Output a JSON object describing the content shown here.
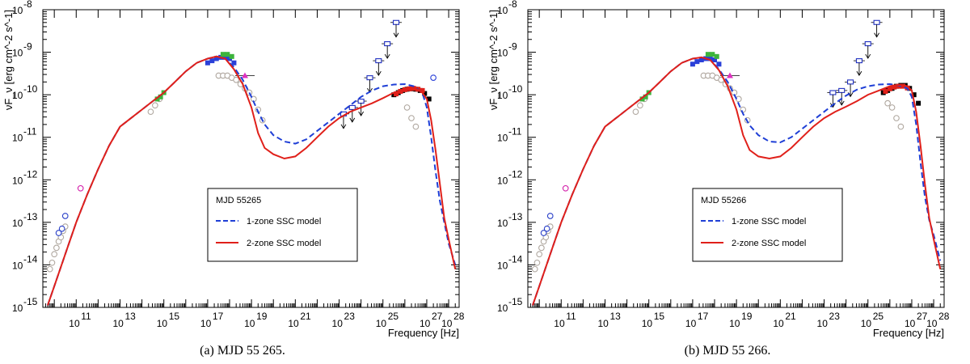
{
  "chart_data": [
    {
      "type": "line",
      "caption": "(a)  MJD 55 265.",
      "xlabel": "Frequency [Hz]",
      "ylabel": "νF_ν [erg cm^-2 s^-1]",
      "xscale": "log",
      "yscale": "log",
      "xlim": [
        3000000000.0,
        3e+28
      ],
      "ylim": [
        1e-15,
        1e-08
      ],
      "xticks": [
        11,
        13,
        15,
        17,
        19,
        21,
        23,
        25,
        27,
        28
      ],
      "yticks": [
        -15,
        -14,
        -13,
        -12,
        -11,
        -10,
        -9,
        -8
      ],
      "legend": {
        "title": "MJD 55265",
        "position": "center-right",
        "entries": [
          {
            "label": "1-zone SSC model",
            "color": "#1f3fd6",
            "style": "dashed"
          },
          {
            "label": "2-zone SSC model",
            "color": "#e0201a",
            "style": "solid"
          }
        ]
      },
      "series": [
        {
          "name": "1-zone SSC model",
          "color": "#1f3fd6",
          "style": "dashed",
          "x": [
            9.7,
            10.0,
            10.3,
            10.6,
            11.0,
            11.5,
            12.0,
            12.5,
            13.0,
            13.5,
            14.0,
            14.5,
            15.0,
            15.5,
            16.0,
            16.5,
            17.0,
            17.4,
            17.8,
            18.2,
            18.6,
            19.0,
            19.3,
            19.6,
            20.0,
            20.5,
            21.0,
            21.5,
            22.0,
            22.5,
            23.0,
            23.5,
            24.0,
            24.5,
            25.0,
            25.5,
            26.0,
            26.4,
            26.8,
            27.0,
            27.2,
            27.4,
            27.6,
            27.8,
            28.0,
            28.3
          ],
          "y": [
            -14.95,
            -14.5,
            -14.05,
            -13.6,
            -13.0,
            -12.35,
            -11.75,
            -11.2,
            -10.75,
            -10.55,
            -10.35,
            -10.15,
            -9.95,
            -9.7,
            -9.45,
            -9.25,
            -9.15,
            -9.1,
            -9.15,
            -9.35,
            -9.65,
            -10.05,
            -10.4,
            -10.7,
            -10.95,
            -11.1,
            -11.15,
            -11.05,
            -10.85,
            -10.65,
            -10.45,
            -10.25,
            -10.05,
            -9.9,
            -9.8,
            -9.76,
            -9.75,
            -9.8,
            -9.95,
            -10.3,
            -11.0,
            -11.8,
            -12.5,
            -13.0,
            -13.5,
            -14.0
          ]
        },
        {
          "name": "2-zone SSC model",
          "color": "#e0201a",
          "style": "solid",
          "x": [
            9.7,
            10.0,
            10.3,
            10.6,
            11.0,
            11.5,
            12.0,
            12.5,
            13.0,
            13.5,
            14.0,
            14.5,
            15.0,
            15.5,
            16.0,
            16.5,
            17.0,
            17.4,
            17.8,
            18.2,
            18.6,
            19.0,
            19.3,
            19.6,
            20.0,
            20.5,
            21.0,
            21.5,
            22.0,
            22.5,
            23.0,
            23.5,
            24.0,
            24.5,
            25.0,
            25.5,
            26.0,
            26.3,
            26.6,
            26.8,
            27.0,
            27.2,
            27.4,
            27.6,
            27.8,
            28.0,
            28.3
          ],
          "y": [
            -14.95,
            -14.5,
            -14.05,
            -13.6,
            -13.0,
            -12.35,
            -11.75,
            -11.2,
            -10.75,
            -10.55,
            -10.35,
            -10.15,
            -9.95,
            -9.7,
            -9.45,
            -9.25,
            -9.15,
            -9.1,
            -9.15,
            -9.4,
            -9.75,
            -10.3,
            -10.9,
            -11.25,
            -11.4,
            -11.5,
            -11.45,
            -11.25,
            -11.0,
            -10.75,
            -10.55,
            -10.4,
            -10.3,
            -10.2,
            -10.08,
            -9.95,
            -9.87,
            -9.85,
            -9.88,
            -9.95,
            -10.1,
            -10.6,
            -11.3,
            -12.1,
            -12.9,
            -13.4,
            -14.1
          ]
        }
      ],
      "observations": [
        {
          "name": "historical (grey)",
          "color": "#b0a8a0",
          "marker": "circle-open",
          "x": [
            9.8,
            9.9,
            10.0,
            10.1,
            10.2,
            10.3,
            10.4,
            10.5,
            14.4,
            14.6,
            14.8,
            17.5,
            17.7,
            17.9,
            18.1,
            18.3,
            18.5,
            18.7,
            18.9,
            19.1,
            19.3,
            19.5,
            26.1,
            26.3,
            26.5
          ],
          "y": [
            -14.1,
            -13.95,
            -13.75,
            -13.6,
            -13.45,
            -13.35,
            -13.2,
            -13.1,
            -10.4,
            -10.25,
            -10.1,
            -9.55,
            -9.55,
            -9.55,
            -9.6,
            -9.65,
            -9.75,
            -9.85,
            -9.95,
            -10.1,
            -10.35,
            -10.6,
            -10.3,
            -10.55,
            -10.75
          ]
        },
        {
          "name": "radio",
          "color": "#2a40c8",
          "marker": "circle-open",
          "x": [
            10.2,
            10.35,
            10.5
          ],
          "y": [
            -13.25,
            -13.15,
            -12.85
          ]
        },
        {
          "name": "sub-mm",
          "color": "#d21aa8",
          "marker": "circle-open",
          "x": [
            11.2
          ],
          "y": [
            -12.2
          ]
        },
        {
          "name": "optical/UV",
          "color": "#3cb43c",
          "marker": "square",
          "x": [
            14.7,
            14.85,
            15.0
          ],
          "y": [
            -10.1,
            -10.05,
            -9.95
          ]
        },
        {
          "name": "X-ray (blue)",
          "color": "#2a40d8",
          "marker": "square",
          "x": [
            17.0,
            17.2,
            17.4,
            17.6,
            17.8,
            18.0,
            18.2
          ],
          "y": [
            -9.25,
            -9.2,
            -9.15,
            -9.12,
            -9.12,
            -9.15,
            -9.25
          ]
        },
        {
          "name": "X-ray (green)",
          "color": "#3cb43c",
          "marker": "square",
          "x": [
            17.7,
            17.9,
            18.1
          ],
          "y": [
            -9.05,
            -9.05,
            -9.1
          ]
        },
        {
          "name": "hard X-ray",
          "color": "#e030c0",
          "marker": "triangle",
          "x": [
            18.7
          ],
          "y": [
            -9.55
          ]
        },
        {
          "name": "gamma (Fermi)",
          "color": "#1f2fc0",
          "marker": "square-open",
          "x": [
            23.2,
            23.6,
            24.0,
            24.4,
            24.8,
            25.2,
            25.6
          ],
          "y": [
            -10.45,
            -10.3,
            -10.15,
            -9.6,
            -9.2,
            -8.8,
            -8.3
          ]
        },
        {
          "name": "VHE (black)",
          "color": "#000000",
          "marker": "square",
          "x": [
            25.5,
            25.7,
            25.9,
            26.1,
            26.3,
            26.5,
            26.7,
            26.9,
            27.1
          ],
          "y": [
            -10.0,
            -9.95,
            -9.9,
            -9.87,
            -9.86,
            -9.87,
            -9.9,
            -9.97,
            -10.1
          ]
        },
        {
          "name": "VHE (red)",
          "color": "#e0201a",
          "marker": "square",
          "x": [
            25.6,
            25.8,
            26.0,
            26.2,
            26.4,
            26.6,
            26.8
          ],
          "y": [
            -9.98,
            -9.92,
            -9.88,
            -9.86,
            -9.85,
            -9.87,
            -9.9
          ]
        },
        {
          "name": "VHE (blue)",
          "color": "#2a40d8",
          "marker": "circle-open",
          "x": [
            27.3
          ],
          "y": [
            -9.6
          ]
        }
      ]
    },
    {
      "type": "line",
      "caption": "(b)  MJD 55 266.",
      "xlabel": "Frequency [Hz]",
      "ylabel": "νF_ν [erg cm^-2 s^-1]",
      "xscale": "log",
      "yscale": "log",
      "xlim": [
        3000000000.0,
        3e+28
      ],
      "ylim": [
        1e-15,
        1e-08
      ],
      "xticks": [
        11,
        13,
        15,
        17,
        19,
        21,
        23,
        25,
        27,
        28
      ],
      "yticks": [
        -15,
        -14,
        -13,
        -12,
        -11,
        -10,
        -9,
        -8
      ],
      "legend": {
        "title": "MJD 55266",
        "position": "center-right",
        "entries": [
          {
            "label": "1-zone SSC model",
            "color": "#1f3fd6",
            "style": "dashed"
          },
          {
            "label": "2-zone SSC model",
            "color": "#e0201a",
            "style": "solid"
          }
        ]
      },
      "series": [
        {
          "name": "1-zone SSC model",
          "color": "#1f3fd6",
          "style": "dashed",
          "x": [
            9.7,
            10.0,
            10.3,
            10.6,
            11.0,
            11.5,
            12.0,
            12.5,
            13.0,
            13.5,
            14.0,
            14.5,
            15.0,
            15.5,
            16.0,
            16.5,
            17.0,
            17.4,
            17.8,
            18.2,
            18.6,
            19.0,
            19.3,
            19.6,
            20.0,
            20.5,
            21.0,
            21.5,
            22.0,
            22.5,
            23.0,
            23.5,
            24.0,
            24.5,
            25.0,
            25.5,
            26.0,
            26.4,
            26.8,
            27.0,
            27.2,
            27.4,
            27.6,
            27.8,
            28.0,
            28.3
          ],
          "y": [
            -14.95,
            -14.5,
            -14.05,
            -13.6,
            -13.0,
            -12.35,
            -11.75,
            -11.2,
            -10.75,
            -10.55,
            -10.35,
            -10.15,
            -9.95,
            -9.7,
            -9.45,
            -9.25,
            -9.15,
            -9.12,
            -9.18,
            -9.4,
            -9.7,
            -10.1,
            -10.45,
            -10.72,
            -10.95,
            -11.1,
            -11.12,
            -11.0,
            -10.8,
            -10.6,
            -10.4,
            -10.2,
            -10.02,
            -9.88,
            -9.8,
            -9.76,
            -9.75,
            -9.78,
            -9.85,
            -10.05,
            -10.7,
            -11.6,
            -12.4,
            -12.95,
            -13.3,
            -13.9
          ]
        },
        {
          "name": "2-zone SSC model",
          "color": "#e0201a",
          "style": "solid",
          "x": [
            9.7,
            10.0,
            10.3,
            10.6,
            11.0,
            11.5,
            12.0,
            12.5,
            13.0,
            13.5,
            14.0,
            14.5,
            15.0,
            15.5,
            16.0,
            16.5,
            17.0,
            17.4,
            17.8,
            18.2,
            18.6,
            19.0,
            19.3,
            19.6,
            20.0,
            20.5,
            21.0,
            21.5,
            22.0,
            22.5,
            23.0,
            23.5,
            24.0,
            24.5,
            25.0,
            25.5,
            26.0,
            26.3,
            26.6,
            26.8,
            27.0,
            27.2,
            27.4,
            27.6,
            27.8,
            28.0,
            28.3
          ],
          "y": [
            -14.95,
            -14.5,
            -14.05,
            -13.6,
            -13.0,
            -12.35,
            -11.75,
            -11.2,
            -10.75,
            -10.55,
            -10.35,
            -10.15,
            -9.95,
            -9.7,
            -9.45,
            -9.25,
            -9.15,
            -9.12,
            -9.18,
            -9.42,
            -9.8,
            -10.35,
            -10.95,
            -11.3,
            -11.45,
            -11.5,
            -11.45,
            -11.25,
            -11.0,
            -10.75,
            -10.55,
            -10.4,
            -10.28,
            -10.15,
            -10.0,
            -9.9,
            -9.8,
            -9.77,
            -9.77,
            -9.8,
            -9.9,
            -10.4,
            -11.2,
            -12.1,
            -12.9,
            -13.4,
            -14.1
          ]
        }
      ],
      "observations": [
        {
          "name": "historical (grey)",
          "color": "#b0a8a0",
          "marker": "circle-open",
          "x": [
            9.8,
            9.9,
            10.0,
            10.1,
            10.2,
            10.3,
            10.4,
            10.5,
            14.4,
            14.6,
            14.8,
            17.5,
            17.7,
            17.9,
            18.1,
            18.3,
            18.5,
            18.7,
            18.9,
            19.1,
            19.3,
            19.5,
            25.9,
            26.1,
            26.3,
            26.5
          ],
          "y": [
            -14.1,
            -13.95,
            -13.75,
            -13.6,
            -13.45,
            -13.35,
            -13.2,
            -13.1,
            -10.4,
            -10.25,
            -10.1,
            -9.55,
            -9.55,
            -9.55,
            -9.6,
            -9.65,
            -9.75,
            -9.85,
            -9.95,
            -10.1,
            -10.35,
            -10.6,
            -10.2,
            -10.3,
            -10.55,
            -10.75
          ]
        },
        {
          "name": "radio",
          "color": "#2a40c8",
          "marker": "circle-open",
          "x": [
            10.2,
            10.35,
            10.5
          ],
          "y": [
            -13.25,
            -13.15,
            -12.85
          ]
        },
        {
          "name": "sub-mm",
          "color": "#d21aa8",
          "marker": "circle-open",
          "x": [
            11.2
          ],
          "y": [
            -12.2
          ]
        },
        {
          "name": "optical/UV",
          "color": "#3cb43c",
          "marker": "square",
          "x": [
            14.7,
            14.85,
            15.0
          ],
          "y": [
            -10.1,
            -10.05,
            -9.95
          ]
        },
        {
          "name": "X-ray (blue)",
          "color": "#2a40d8",
          "marker": "square",
          "x": [
            17.0,
            17.2,
            17.4,
            17.6,
            17.8,
            18.0,
            18.2
          ],
          "y": [
            -9.28,
            -9.22,
            -9.18,
            -9.15,
            -9.15,
            -9.18,
            -9.28
          ]
        },
        {
          "name": "X-ray (green)",
          "color": "#3cb43c",
          "marker": "square",
          "x": [
            17.7,
            17.9,
            18.1
          ],
          "y": [
            -9.05,
            -9.05,
            -9.1
          ]
        },
        {
          "name": "hard X-ray",
          "color": "#e030c0",
          "marker": "triangle",
          "x": [
            18.7
          ],
          "y": [
            -9.55
          ]
        },
        {
          "name": "gamma (Fermi)",
          "color": "#1f2fc0",
          "marker": "square-open",
          "x": [
            23.4,
            23.8,
            24.2,
            24.6,
            25.0,
            25.4
          ],
          "y": [
            -9.95,
            -9.9,
            -9.7,
            -9.2,
            -8.8,
            -8.3
          ]
        },
        {
          "name": "VHE (black)",
          "color": "#000000",
          "marker": "square",
          "x": [
            25.7,
            25.9,
            26.1,
            26.3,
            26.5,
            26.7,
            26.9,
            27.1,
            27.3
          ],
          "y": [
            -9.95,
            -9.9,
            -9.85,
            -9.8,
            -9.78,
            -9.78,
            -9.85,
            -10.0,
            -10.2
          ]
        },
        {
          "name": "VHE (red)",
          "color": "#e0201a",
          "marker": "square",
          "x": [
            25.8,
            26.0,
            26.2,
            26.4,
            26.6,
            26.8
          ],
          "y": [
            -9.92,
            -9.86,
            -9.82,
            -9.8,
            -9.8,
            -9.84
          ]
        }
      ]
    }
  ]
}
